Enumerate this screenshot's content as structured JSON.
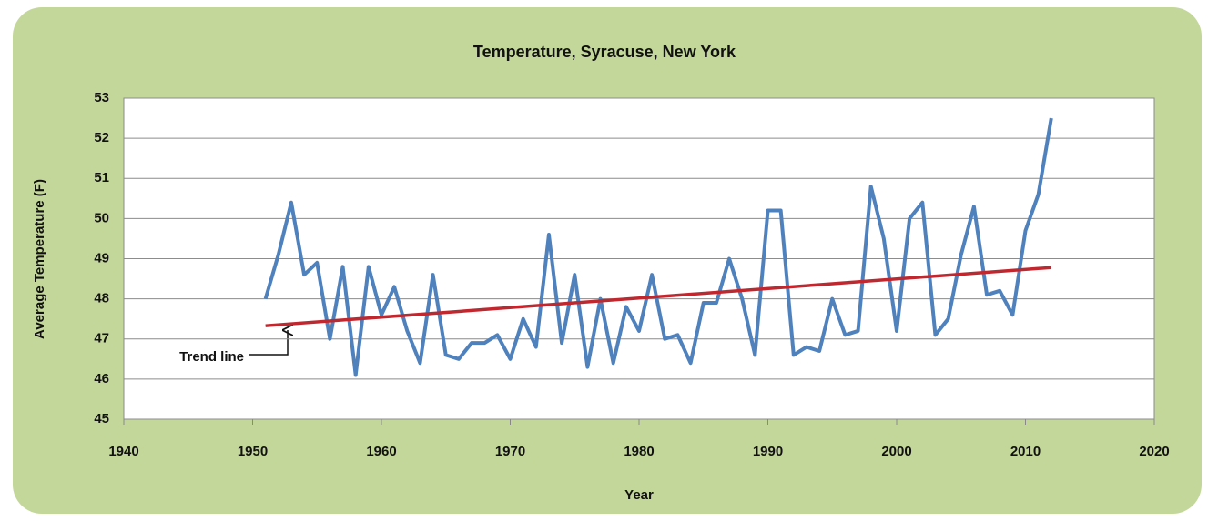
{
  "chart_data": {
    "type": "line",
    "title": "Temperature, Syracuse, New York",
    "x_label": "Year",
    "y_label": "Average Temperature (F)",
    "annotation": "Trend line",
    "xlim": [
      1940,
      2020
    ],
    "xticks": [
      1940,
      1950,
      1960,
      1970,
      1980,
      1990,
      2000,
      2010,
      2020
    ],
    "ylim": [
      45,
      53
    ],
    "yticks": [
      45,
      46,
      47,
      48,
      49,
      50,
      51,
      52,
      53
    ],
    "grid": true,
    "series": [
      {
        "color": "#4f81bd",
        "x": [
          1951,
          1952,
          1953,
          1954,
          1955,
          1956,
          1957,
          1958,
          1959,
          1960,
          1961,
          1962,
          1963,
          1964,
          1965,
          1966,
          1967,
          1968,
          1969,
          1970,
          1971,
          1972,
          1973,
          1974,
          1975,
          1976,
          1977,
          1978,
          1979,
          1980,
          1981,
          1982,
          1983,
          1984,
          1985,
          1986,
          1987,
          1988,
          1989,
          1990,
          1991,
          1992,
          1993,
          1994,
          1995,
          1996,
          1997,
          1998,
          1999,
          2000,
          2001,
          2002,
          2003,
          2004,
          2005,
          2006,
          2007,
          2008,
          2009,
          2010,
          2011,
          2012
        ],
        "values": [
          48.0,
          49.1,
          50.4,
          48.6,
          48.9,
          47.0,
          48.8,
          46.1,
          48.8,
          47.6,
          48.3,
          47.2,
          46.4,
          48.6,
          46.6,
          46.5,
          46.9,
          46.9,
          47.1,
          46.5,
          47.5,
          46.8,
          49.6,
          46.9,
          48.6,
          46.3,
          48.0,
          46.4,
          47.8,
          47.2,
          48.6,
          47.0,
          47.1,
          46.4,
          47.9,
          47.9,
          49.0,
          48.0,
          46.6,
          50.2,
          50.2,
          46.6,
          46.8,
          46.7,
          48.0,
          47.1,
          47.2,
          50.8,
          49.5,
          47.2,
          50.0,
          50.4,
          47.1,
          47.5,
          49.1,
          50.3,
          48.1,
          48.2,
          47.6,
          49.7,
          50.6,
          52.5
        ]
      },
      {
        "color": "#c0282f",
        "x": [
          1951,
          2012
        ],
        "values": [
          47.33,
          48.78
        ]
      }
    ]
  }
}
